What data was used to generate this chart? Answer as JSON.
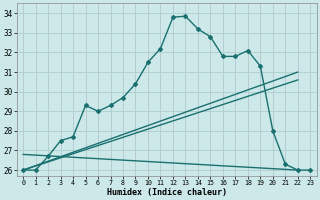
{
  "xlabel": "Humidex (Indice chaleur)",
  "xlim": [
    -0.5,
    23.5
  ],
  "ylim": [
    25.7,
    34.5
  ],
  "yticks": [
    26,
    27,
    28,
    29,
    30,
    31,
    32,
    33,
    34
  ],
  "xticks": [
    0,
    1,
    2,
    3,
    4,
    5,
    6,
    7,
    8,
    9,
    10,
    11,
    12,
    13,
    14,
    15,
    16,
    17,
    18,
    19,
    20,
    21,
    22,
    23
  ],
  "bg_color": "#cce8e8",
  "line_color": "#1a7070",
  "grid_color": "#b0d0d0",
  "grid_minor_color": "#c0dcdc",
  "curve_x": [
    0,
    1,
    2,
    3,
    4,
    5,
    6,
    7,
    8,
    9,
    10,
    11,
    12,
    13,
    14,
    15,
    16,
    17,
    18,
    19,
    20,
    21,
    22,
    23
  ],
  "curve_y": [
    26.0,
    26.0,
    26.7,
    27.5,
    27.7,
    29.3,
    29.0,
    29.3,
    29.7,
    30.4,
    31.5,
    32.2,
    33.8,
    33.85,
    33.2,
    32.8,
    31.8,
    31.8,
    32.1,
    31.3,
    28.0,
    26.3,
    26.0,
    26.0
  ],
  "line1_x": [
    0,
    22
  ],
  "line1_y": [
    26.0,
    31.0
  ],
  "line2_x": [
    0,
    22
  ],
  "line2_y": [
    26.0,
    30.6
  ],
  "line3_x": [
    0,
    22
  ],
  "line3_y": [
    26.8,
    26.0
  ]
}
